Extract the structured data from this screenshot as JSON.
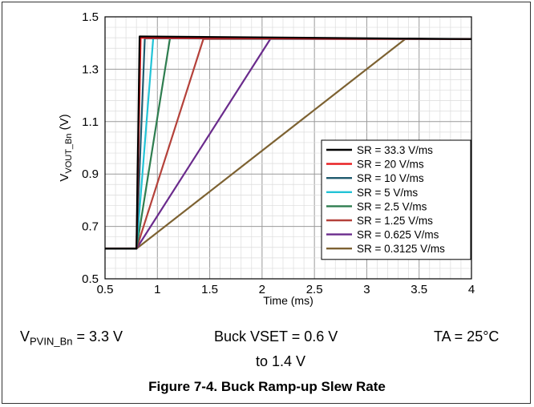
{
  "chart_data": {
    "type": "line",
    "title": "",
    "xlabel": "Time (ms)",
    "ylabel": {
      "main": "V",
      "sub": "VOUT_Bn",
      "unit": " (V)"
    },
    "xlim": [
      0.5,
      4
    ],
    "ylim": [
      0.5,
      1.5
    ],
    "x_ticks": [
      "0.5",
      "1",
      "1.5",
      "2",
      "2.5",
      "3",
      "3.5",
      "4"
    ],
    "y_ticks": [
      "0.5",
      "0.7",
      "0.9",
      "1.1",
      "1.3",
      "1.5"
    ],
    "grid": true,
    "legend_position": "bottom-right",
    "series": [
      {
        "name": "SR = 33.3 V/ms",
        "color": "#000000",
        "start": [
          0.8,
          0.615
        ],
        "ramp_end": [
          0.83,
          1.425
        ],
        "end": [
          4.0,
          1.415
        ]
      },
      {
        "name": "SR = 20 V/ms",
        "color": "#e8191c",
        "start": [
          0.8,
          0.615
        ],
        "ramp_end": [
          0.84,
          1.42
        ],
        "end": [
          4.0,
          1.415
        ]
      },
      {
        "name": "SR = 10 V/ms",
        "color": "#1f5a6e",
        "start": [
          0.8,
          0.615
        ],
        "ramp_end": [
          0.88,
          1.418
        ],
        "end": [
          4.0,
          1.415
        ]
      },
      {
        "name": "SR = 5 V/ms",
        "color": "#22c3d6",
        "start": [
          0.8,
          0.615
        ],
        "ramp_end": [
          0.96,
          1.418
        ],
        "end": [
          4.0,
          1.415
        ]
      },
      {
        "name": "SR = 2.5 V/ms",
        "color": "#2e7d4f",
        "start": [
          0.8,
          0.615
        ],
        "ramp_end": [
          1.12,
          1.418
        ],
        "end": [
          4.0,
          1.415
        ]
      },
      {
        "name": "SR = 1.25 V/ms",
        "color": "#b4413a",
        "start": [
          0.8,
          0.615
        ],
        "ramp_end": [
          1.44,
          1.416
        ],
        "end": [
          4.0,
          1.415
        ]
      },
      {
        "name": "SR = 0.625 V/ms",
        "color": "#6a2b8c",
        "start": [
          0.8,
          0.615
        ],
        "ramp_end": [
          2.08,
          1.416
        ],
        "end": [
          4.0,
          1.415
        ]
      },
      {
        "name": "SR = 0.3125 V/ms",
        "color": "#7d6232",
        "start": [
          0.8,
          0.615
        ],
        "ramp_end": [
          3.37,
          1.416
        ],
        "end": [
          4.0,
          1.415
        ]
      }
    ]
  },
  "conditions": {
    "pvin_main": "V",
    "pvin_sub": "PVIN_Bn",
    "pvin_value": " = 3.3 V",
    "vset_line1": "Buck VSET = 0.6 V",
    "vset_line2": "to 1.4 V",
    "ta": "TA = 25°C"
  },
  "caption": "Figure 7-4. Buck Ramp-up Slew Rate"
}
